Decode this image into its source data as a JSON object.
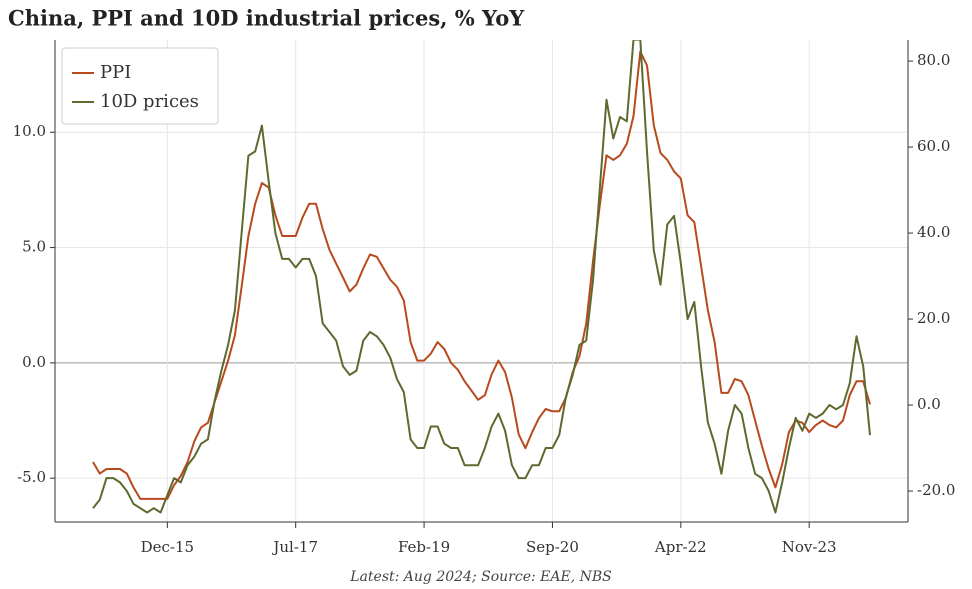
{
  "chart_data": {
    "type": "line",
    "title": "China, PPI and 10D industrial prices, % YoY",
    "footnote": "Latest: Aug 2024; Source: EAE, NBS",
    "categories": [
      null,
      null,
      null,
      null,
      null,
      null,
      null,
      null,
      null,
      null,
      null,
      "Dec-15",
      null,
      null,
      null,
      null,
      null,
      null,
      null,
      null,
      null,
      null,
      null,
      null,
      null,
      null,
      null,
      null,
      null,
      null,
      "Jul-17",
      null,
      null,
      null,
      null,
      null,
      null,
      null,
      null,
      null,
      null,
      null,
      null,
      null,
      null,
      null,
      null,
      null,
      null,
      "Feb-19",
      null,
      null,
      null,
      null,
      null,
      null,
      null,
      null,
      null,
      null,
      null,
      null,
      null,
      null,
      null,
      null,
      null,
      null,
      "Sep-20",
      null,
      null,
      null,
      null,
      null,
      null,
      null,
      null,
      null,
      null,
      null,
      null,
      null,
      null,
      null,
      null,
      null,
      null,
      "Apr-22",
      null,
      null,
      null,
      null,
      null,
      null,
      null,
      null,
      null,
      null,
      null,
      null,
      null,
      null,
      null,
      null,
      null,
      null,
      "Nov-23",
      null,
      null,
      null,
      null,
      null,
      null,
      null,
      null,
      null
    ],
    "series": [
      {
        "name": "PPI",
        "color": "#b84a1e",
        "values": [
          -4.3,
          -4.8,
          -4.6,
          -4.6,
          -4.6,
          -4.8,
          -5.4,
          -5.9,
          -5.9,
          -5.9,
          -5.9,
          -5.9,
          -5.3,
          -4.9,
          -4.3,
          -3.4,
          -2.8,
          -2.6,
          -1.7,
          -0.8,
          0.1,
          1.2,
          3.3,
          5.5,
          6.9,
          7.8,
          7.6,
          6.4,
          5.5,
          5.5,
          5.5,
          6.3,
          6.9,
          6.9,
          5.8,
          4.9,
          4.3,
          3.7,
          3.1,
          3.4,
          4.1,
          4.7,
          4.6,
          4.1,
          3.6,
          3.3,
          2.7,
          0.9,
          0.1,
          0.1,
          0.4,
          0.9,
          0.6,
          0.0,
          -0.3,
          -0.8,
          -1.2,
          -1.6,
          -1.4,
          -0.5,
          0.1,
          -0.4,
          -1.5,
          -3.1,
          -3.7,
          -3.0,
          -2.4,
          -2.0,
          -2.1,
          -2.1,
          -1.5,
          -0.4,
          0.3,
          1.7,
          4.4,
          6.8,
          9.0,
          8.8,
          9.0,
          9.5,
          10.7,
          13.5,
          12.9,
          10.3,
          9.1,
          8.8,
          8.3,
          8.0,
          6.4,
          6.1,
          4.2,
          2.3,
          0.9,
          -1.3,
          -1.3,
          -0.7,
          -0.8,
          -1.4,
          -2.5,
          -3.6,
          -4.6,
          -5.4,
          -4.4,
          -3.0,
          -2.5,
          -2.6,
          -3.0,
          -2.7,
          -2.5,
          -2.7,
          -2.8,
          -2.5,
          -1.4,
          -0.8,
          -0.8,
          -1.8
        ]
      },
      {
        "name": "10D prices",
        "color": "#5b6b2f",
        "axis": "y2",
        "values": [
          -24,
          -22,
          -17,
          -17,
          -18,
          -20,
          -23,
          -24,
          -25,
          -24,
          -25,
          -21,
          -17,
          -18,
          -14,
          -12,
          -9,
          -8,
          1,
          8,
          14,
          22,
          40,
          58,
          59,
          65,
          52,
          40,
          34,
          34,
          32,
          34,
          34,
          30,
          19,
          17,
          15,
          9,
          7,
          8,
          15,
          17,
          16,
          14,
          11,
          6,
          3,
          -8,
          -10,
          -10,
          -5,
          -5,
          -9,
          -10,
          -10,
          -14,
          -14,
          -14,
          -10,
          -5,
          -2,
          -6,
          -14,
          -17,
          -17,
          -14,
          -14,
          -10,
          -10,
          -7,
          2,
          7,
          14,
          15,
          29,
          50,
          71,
          62,
          67,
          66,
          85,
          85,
          59,
          36,
          28,
          42,
          44,
          33,
          20,
          24,
          9,
          -4,
          -9,
          -16,
          -6,
          0,
          -2,
          -10,
          -16,
          -17,
          -20,
          -25,
          -18,
          -10,
          -3,
          -6,
          -2,
          -3,
          -2,
          0,
          -1,
          0,
          5,
          16,
          9,
          -7
        ]
      }
    ],
    "ylim": [
      -6.9,
      14.0
    ],
    "yticks": [
      {
        "value": -5,
        "label": "-5.0"
      },
      {
        "value": 0,
        "label": "0.0"
      },
      {
        "value": 5,
        "label": "5.0"
      },
      {
        "value": 10,
        "label": "10.0"
      }
    ],
    "y2lim": [
      -27.2,
      84.9
    ],
    "y2ticks": [
      {
        "value": -20,
        "label": "-20.0"
      },
      {
        "value": 0,
        "label": "0.0"
      },
      {
        "value": 20,
        "label": "20.0"
      },
      {
        "value": 40,
        "label": "40.0"
      },
      {
        "value": 60,
        "label": "60.0"
      },
      {
        "value": 80,
        "label": "80.0"
      }
    ],
    "grid": true,
    "legend": "upper left"
  }
}
